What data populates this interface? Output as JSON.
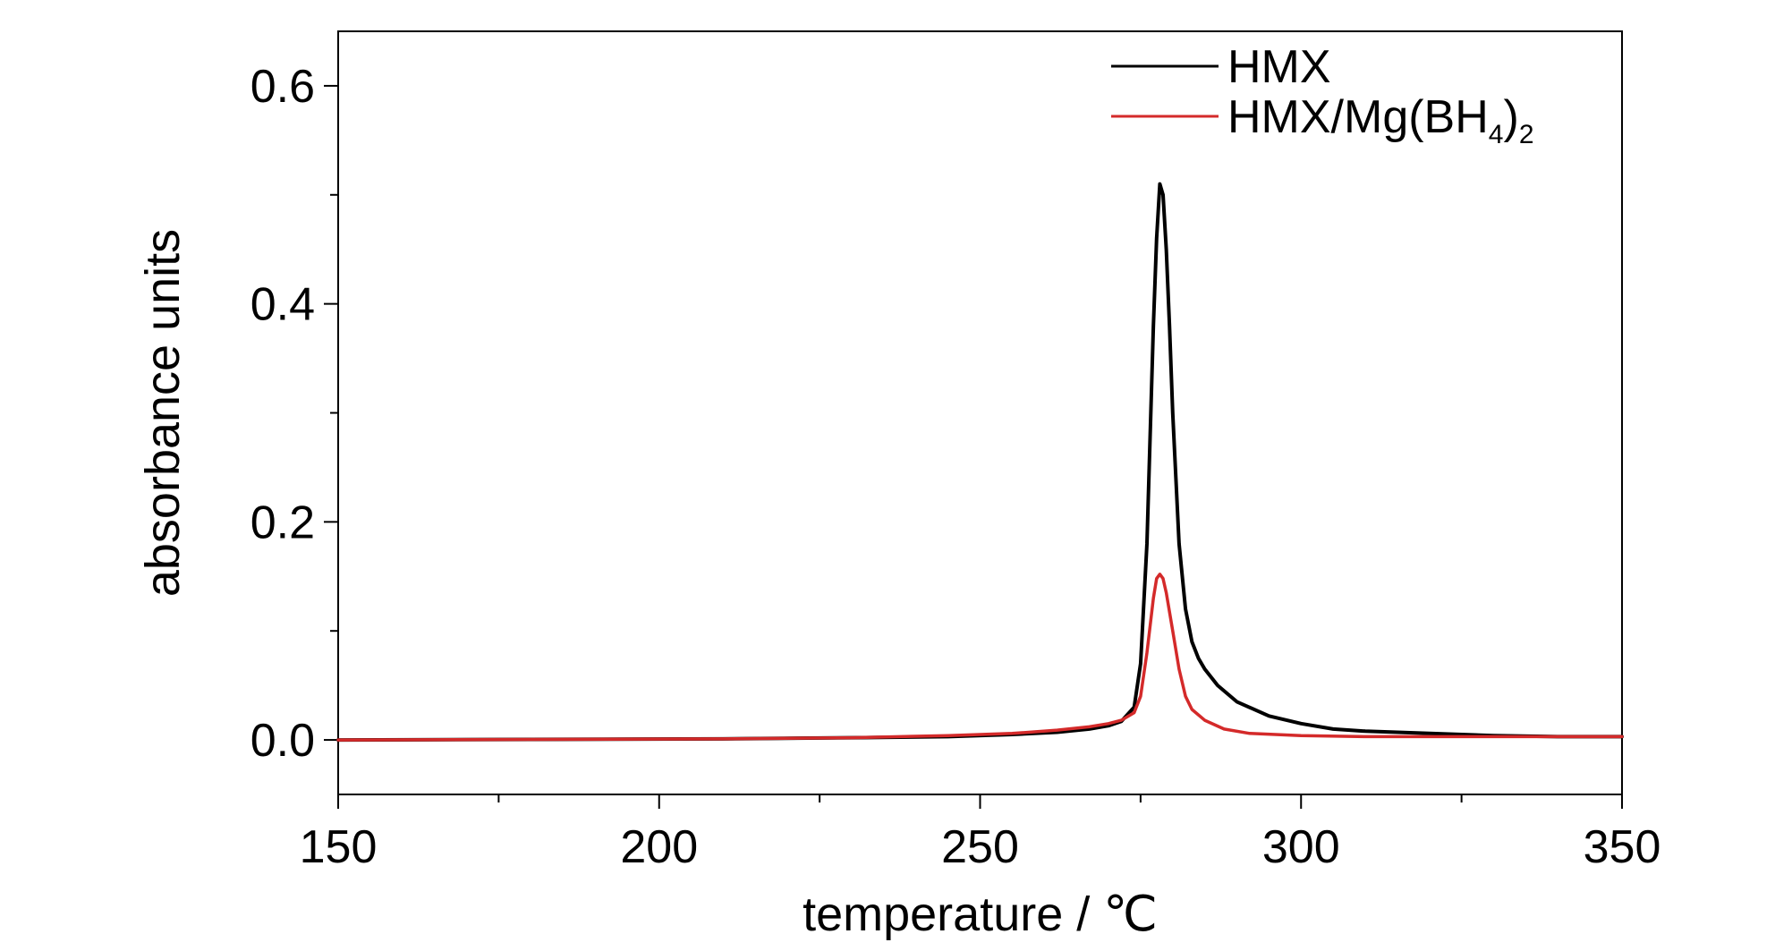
{
  "chart_data": {
    "type": "line",
    "xlabel": "temperature / ℃",
    "ylabel": "absorbance units",
    "xlim": [
      150,
      350
    ],
    "ylim": [
      -0.05,
      0.65
    ],
    "x_ticks": [
      {
        "value": 150,
        "label": "150"
      },
      {
        "value": 200,
        "label": "200"
      },
      {
        "value": 250,
        "label": "250"
      },
      {
        "value": 300,
        "label": "300"
      },
      {
        "value": 350,
        "label": "350"
      }
    ],
    "x_minor_ticks": [
      175,
      225,
      275,
      325
    ],
    "y_ticks": [
      {
        "value": 0.0,
        "label": "0.0"
      },
      {
        "value": 0.2,
        "label": "0.2"
      },
      {
        "value": 0.4,
        "label": "0.4"
      },
      {
        "value": 0.6,
        "label": "0.6"
      }
    ],
    "y_minor_ticks": [
      0.1,
      0.3,
      0.5
    ],
    "grid": false,
    "legend_position": "top-right",
    "series": [
      {
        "name": "HMX",
        "color": "#000000",
        "x": [
          150,
          180,
          210,
          230,
          245,
          255,
          262,
          267,
          270,
          272,
          274,
          275,
          276,
          277,
          277.5,
          278,
          278.5,
          279,
          279.5,
          280,
          281,
          282,
          283,
          284,
          285,
          287,
          290,
          295,
          300,
          305,
          310,
          320,
          330,
          340,
          350
        ],
        "y": [
          0.0,
          0.0005,
          0.001,
          0.002,
          0.003,
          0.005,
          0.007,
          0.01,
          0.013,
          0.017,
          0.03,
          0.07,
          0.18,
          0.38,
          0.46,
          0.51,
          0.5,
          0.45,
          0.38,
          0.3,
          0.18,
          0.12,
          0.09,
          0.075,
          0.065,
          0.05,
          0.035,
          0.022,
          0.015,
          0.01,
          0.008,
          0.006,
          0.004,
          0.003,
          0.003
        ]
      },
      {
        "name": "HMX/Mg(BH4)2",
        "legend_main": "HMX/Mg(BH",
        "legend_sub1": "4",
        "legend_mid": ")",
        "legend_sub2": "2",
        "color": "#d42a2a",
        "x": [
          150,
          180,
          210,
          230,
          245,
          255,
          262,
          267,
          270,
          272,
          274,
          275,
          276,
          277,
          277.5,
          278,
          278.5,
          279,
          280,
          281,
          282,
          283,
          285,
          288,
          292,
          300,
          310,
          320,
          330,
          340,
          350
        ],
        "y": [
          0.0,
          0.0005,
          0.001,
          0.002,
          0.004,
          0.006,
          0.009,
          0.012,
          0.015,
          0.018,
          0.025,
          0.04,
          0.08,
          0.13,
          0.148,
          0.152,
          0.148,
          0.135,
          0.1,
          0.065,
          0.04,
          0.028,
          0.018,
          0.01,
          0.006,
          0.004,
          0.003,
          0.003,
          0.003,
          0.003,
          0.003
        ]
      }
    ]
  }
}
